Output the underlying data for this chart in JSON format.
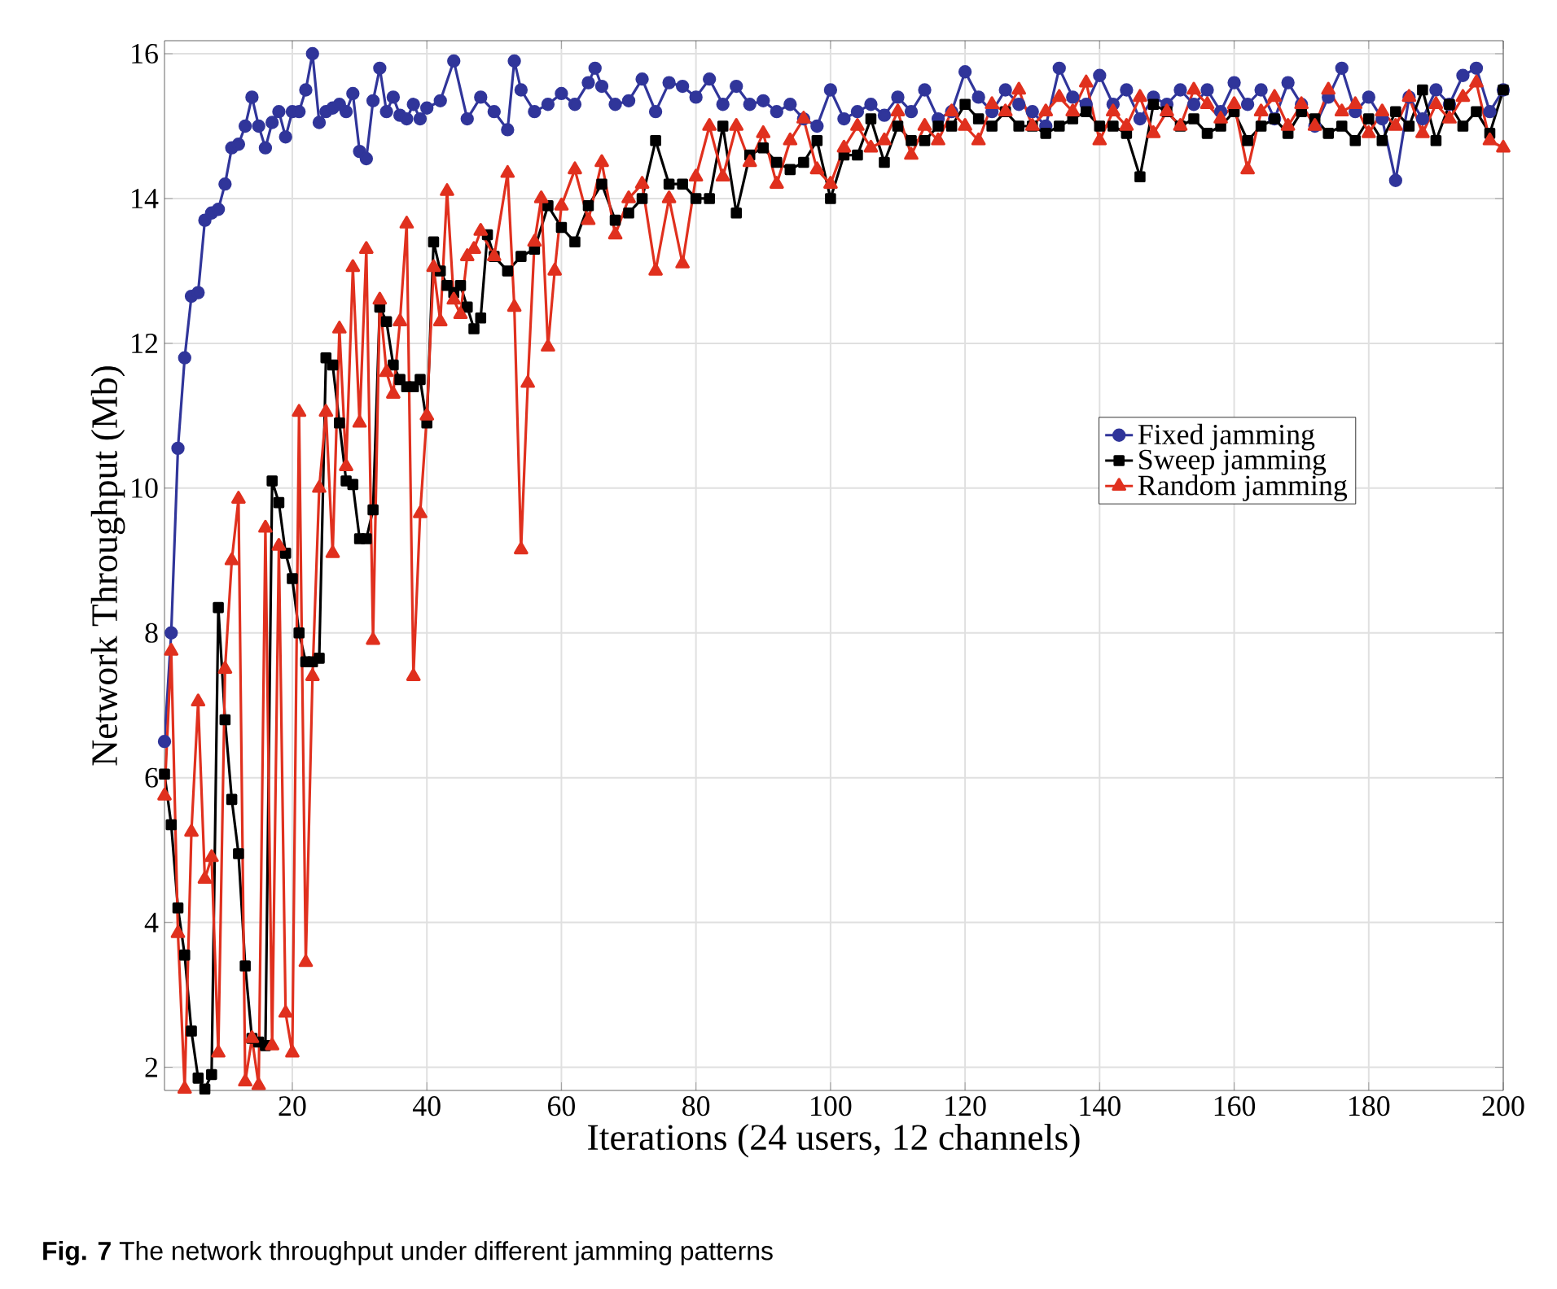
{
  "chart_data": {
    "type": "line",
    "xlabel": "Iterations (24 users, 12 channels)",
    "ylabel": "Network Throughput (Mb)",
    "annotations": [
      "**Fig. 7** The network throughput under different jamming patterns"
    ],
    "xlim": [
      1,
      200
    ],
    "ylim": [
      1.68,
      16.18
    ],
    "xticks": [
      20,
      40,
      60,
      80,
      100,
      120,
      140,
      160,
      180,
      200
    ],
    "yticks": [
      2,
      4,
      6,
      8,
      10,
      12,
      14,
      16
    ],
    "grid": true,
    "legend": "right",
    "line_style": "solid",
    "series": [
      {
        "name": "Fixed jamming",
        "color": "#30359a",
        "marker": "circle",
        "x": [
          1,
          2,
          3,
          4,
          5,
          6,
          7,
          8,
          9,
          10,
          11,
          12,
          13,
          14,
          15,
          16,
          17,
          18,
          19,
          20,
          21,
          22,
          23,
          24,
          25,
          26,
          27,
          28,
          29,
          30,
          31,
          32,
          33,
          34,
          35,
          36,
          37,
          38,
          39,
          40,
          42,
          44,
          46,
          48,
          50,
          52,
          53,
          54,
          56,
          58,
          60,
          62,
          64,
          65,
          66,
          68,
          70,
          72,
          74,
          76,
          78,
          80,
          82,
          84,
          86,
          88,
          90,
          92,
          94,
          96,
          98,
          100,
          102,
          104,
          106,
          108,
          110,
          112,
          114,
          116,
          118,
          120,
          122,
          124,
          126,
          128,
          130,
          132,
          134,
          136,
          138,
          140,
          142,
          144,
          146,
          148,
          150,
          152,
          154,
          156,
          158,
          160,
          162,
          164,
          166,
          168,
          170,
          172,
          174,
          176,
          178,
          180,
          182,
          184,
          186,
          188,
          190,
          192,
          194,
          196,
          198,
          200
        ],
        "values": [
          6.5,
          8.0,
          10.55,
          11.8,
          12.65,
          12.7,
          13.7,
          13.8,
          13.85,
          14.2,
          14.7,
          14.75,
          15.0,
          15.4,
          15.0,
          14.7,
          15.05,
          15.2,
          14.85,
          15.2,
          15.2,
          15.5,
          16.0,
          15.05,
          15.2,
          15.25,
          15.3,
          15.2,
          15.45,
          14.65,
          14.55,
          15.35,
          15.8,
          15.2,
          15.4,
          15.15,
          15.1,
          15.3,
          15.1,
          15.25,
          15.35,
          15.9,
          15.1,
          15.4,
          15.2,
          14.95,
          15.9,
          15.5,
          15.2,
          15.3,
          15.45,
          15.3,
          15.6,
          15.8,
          15.55,
          15.3,
          15.35,
          15.65,
          15.2,
          15.6,
          15.55,
          15.4,
          15.65,
          15.3,
          15.55,
          15.3,
          15.35,
          15.2,
          15.3,
          15.1,
          15.0,
          15.5,
          15.1,
          15.2,
          15.3,
          15.15,
          15.4,
          15.2,
          15.5,
          15.1,
          15.2,
          15.75,
          15.4,
          15.2,
          15.5,
          15.3,
          15.2,
          15.0,
          15.8,
          15.4,
          15.3,
          15.7,
          15.3,
          15.5,
          15.1,
          15.4,
          15.3,
          15.5,
          15.3,
          15.5,
          15.2,
          15.6,
          15.3,
          15.5,
          15.1,
          15.6,
          15.3,
          15.0,
          15.4,
          15.8,
          15.2,
          15.4,
          15.1,
          14.25,
          15.4,
          15.1,
          15.5,
          15.3,
          15.7,
          15.8,
          15.2,
          15.5
        ]
      },
      {
        "name": "Sweep jamming",
        "color": "#000000",
        "marker": "square",
        "x": [
          1,
          2,
          3,
          4,
          5,
          6,
          7,
          8,
          9,
          10,
          11,
          12,
          13,
          14,
          15,
          16,
          17,
          18,
          19,
          20,
          21,
          22,
          23,
          24,
          25,
          26,
          27,
          28,
          29,
          30,
          31,
          32,
          33,
          34,
          35,
          36,
          37,
          38,
          39,
          40,
          41,
          42,
          43,
          44,
          45,
          46,
          47,
          48,
          49,
          50,
          52,
          54,
          56,
          58,
          60,
          62,
          64,
          66,
          68,
          70,
          72,
          74,
          76,
          78,
          80,
          82,
          84,
          86,
          88,
          90,
          92,
          94,
          96,
          98,
          100,
          102,
          104,
          106,
          108,
          110,
          112,
          114,
          116,
          118,
          120,
          122,
          124,
          126,
          128,
          130,
          132,
          134,
          136,
          138,
          140,
          142,
          144,
          146,
          148,
          150,
          152,
          154,
          156,
          158,
          160,
          162,
          164,
          166,
          168,
          170,
          172,
          174,
          176,
          178,
          180,
          182,
          184,
          186,
          188,
          190,
          192,
          194,
          196,
          198,
          200
        ],
        "values": [
          6.05,
          5.35,
          4.2,
          3.55,
          2.5,
          1.85,
          1.7,
          1.9,
          8.35,
          6.8,
          5.7,
          4.95,
          3.4,
          2.4,
          2.35,
          2.3,
          10.1,
          9.8,
          9.1,
          8.75,
          8.0,
          7.6,
          7.6,
          7.65,
          11.8,
          11.7,
          10.9,
          10.1,
          10.05,
          9.3,
          9.3,
          9.7,
          12.5,
          12.3,
          11.7,
          11.5,
          11.4,
          11.4,
          11.5,
          10.9,
          13.4,
          13.0,
          12.8,
          12.7,
          12.8,
          12.5,
          12.2,
          12.35,
          13.5,
          13.2,
          13.0,
          13.2,
          13.3,
          13.9,
          13.6,
          13.4,
          13.9,
          14.2,
          13.7,
          13.8,
          14.0,
          14.8,
          14.2,
          14.2,
          14.0,
          14.0,
          15.0,
          13.8,
          14.6,
          14.7,
          14.5,
          14.4,
          14.5,
          14.8,
          14.0,
          14.6,
          14.6,
          15.1,
          14.5,
          15.0,
          14.8,
          14.8,
          15.0,
          15.0,
          15.3,
          15.1,
          15.0,
          15.2,
          15.0,
          15.0,
          14.9,
          15.0,
          15.1,
          15.2,
          15.0,
          15.0,
          14.9,
          14.3,
          15.3,
          15.2,
          15.0,
          15.1,
          14.9,
          15.0,
          15.2,
          14.8,
          15.0,
          15.1,
          14.9,
          15.2,
          15.1,
          14.9,
          15.0,
          14.8,
          15.1,
          14.8,
          15.2,
          15.0,
          15.5,
          14.8,
          15.3,
          15.0,
          15.2,
          14.9,
          15.5
        ]
      },
      {
        "name": "Random jamming",
        "color": "#e0301e",
        "marker": "triangle",
        "x": [
          1,
          2,
          3,
          4,
          5,
          6,
          7,
          8,
          9,
          10,
          11,
          12,
          13,
          14,
          15,
          16,
          17,
          18,
          19,
          20,
          21,
          22,
          23,
          24,
          25,
          26,
          27,
          28,
          29,
          30,
          31,
          32,
          33,
          34,
          35,
          36,
          37,
          38,
          39,
          40,
          41,
          42,
          43,
          44,
          45,
          46,
          47,
          48,
          50,
          52,
          53,
          54,
          55,
          56,
          57,
          58,
          59,
          60,
          62,
          64,
          66,
          68,
          70,
          72,
          74,
          76,
          78,
          80,
          82,
          84,
          86,
          88,
          90,
          92,
          94,
          96,
          98,
          100,
          102,
          104,
          106,
          108,
          110,
          112,
          114,
          116,
          118,
          120,
          122,
          124,
          126,
          128,
          130,
          132,
          134,
          136,
          138,
          140,
          142,
          144,
          146,
          148,
          150,
          152,
          154,
          156,
          158,
          160,
          162,
          164,
          166,
          168,
          170,
          172,
          174,
          176,
          178,
          180,
          182,
          184,
          186,
          188,
          190,
          192,
          194,
          196,
          198,
          200
        ],
        "values": [
          5.75,
          7.75,
          3.85,
          1.7,
          5.25,
          7.05,
          4.6,
          4.9,
          2.2,
          7.5,
          9.0,
          9.85,
          1.8,
          2.4,
          1.75,
          9.45,
          2.3,
          9.2,
          2.75,
          2.2,
          11.05,
          3.45,
          7.4,
          10.0,
          11.05,
          9.1,
          12.2,
          10.3,
          13.05,
          10.9,
          13.3,
          7.9,
          12.6,
          11.6,
          11.3,
          12.3,
          13.65,
          7.4,
          9.65,
          11.0,
          13.05,
          12.3,
          14.1,
          12.6,
          12.4,
          13.2,
          13.3,
          13.55,
          13.2,
          14.35,
          12.5,
          9.15,
          11.45,
          13.4,
          14.0,
          11.95,
          13.0,
          13.9,
          14.4,
          13.7,
          14.5,
          13.5,
          14.0,
          14.2,
          13.0,
          14.0,
          13.1,
          14.3,
          15.0,
          14.3,
          15.0,
          14.5,
          14.9,
          14.2,
          14.8,
          15.1,
          14.4,
          14.2,
          14.7,
          15.0,
          14.7,
          14.8,
          15.2,
          14.6,
          15.0,
          14.8,
          15.2,
          15.0,
          14.8,
          15.3,
          15.2,
          15.5,
          15.0,
          15.2,
          15.4,
          15.2,
          15.6,
          14.8,
          15.2,
          15.0,
          15.4,
          14.9,
          15.2,
          15.0,
          15.5,
          15.3,
          15.1,
          15.3,
          14.4,
          15.2,
          15.4,
          15.0,
          15.3,
          15.0,
          15.5,
          15.2,
          15.3,
          14.9,
          15.2,
          15.0,
          15.4,
          14.9,
          15.3,
          15.1,
          15.4,
          15.6,
          14.8,
          14.7
        ]
      }
    ]
  }
}
